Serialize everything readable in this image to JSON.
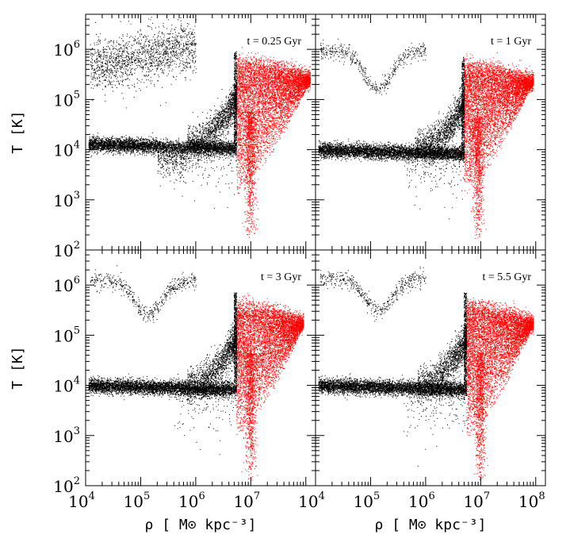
{
  "chart_data": {
    "type": "scatter",
    "layout": "2x2 panels, shared axes",
    "xlabel": "ρ [ M⊙ kpc⁻³]",
    "ylabel": "T [K]",
    "xscale": "log",
    "yscale": "log",
    "xlim": [
      10000,
      150000000
    ],
    "ylim": [
      100,
      5000000
    ],
    "x_tick_values": [
      10000,
      100000,
      1000000,
      10000000,
      100000000
    ],
    "y_tick_values": [
      100,
      1000,
      10000,
      100000,
      1000000
    ],
    "series_colors": [
      "#000000",
      "#ff0000"
    ],
    "panels": [
      {
        "label": "t = 0.25 Gyr",
        "black_density_cut": 5500000,
        "features": {
          "hot_halo": {
            "x": [
              12000,
              1000000
            ],
            "y": [
              200000,
              1300000
            ]
          },
          "warm_plateau_T": 13000,
          "cool_trough": {
            "x": [
              200000,
              700000
            ],
            "T_min": 3000
          },
          "red_plume": {
            "x": [
              5500000,
              120000000
            ],
            "T_peak": 600000,
            "T_min": 150
          }
        }
      },
      {
        "label": "t = 1 Gyr",
        "black_density_cut": 5000000,
        "features": {
          "hot_halo": {
            "x": [
              12000,
              1000000
            ],
            "y": [
              150000,
              1200000
            ]
          },
          "warm_plateau_T": 10000,
          "cool_trough": null,
          "red_plume": {
            "x": [
              5000000,
              90000000
            ],
            "T_peak": 500000,
            "T_min": 150
          }
        }
      },
      {
        "label": "t = 3 Gyr",
        "black_density_cut": 5500000,
        "features": {
          "hot_halo": {
            "x": [
              12000,
              1000000
            ],
            "y": [
              250000,
              1600000
            ]
          },
          "warm_plateau_T": 10000,
          "cool_trough": null,
          "red_plume": {
            "x": [
              5500000,
              90000000
            ],
            "T_peak": 400000,
            "T_min": 100
          }
        }
      },
      {
        "label": "t = 5.5 Gyr",
        "black_density_cut": 5500000,
        "features": {
          "hot_halo": {
            "x": [
              12000,
              1000000
            ],
            "y": [
              300000,
              1700000
            ]
          },
          "warm_plateau_T": 10000,
          "cool_trough": null,
          "red_plume": {
            "x": [
              5500000,
              90000000
            ],
            "T_peak": 400000,
            "T_min": 100
          }
        }
      }
    ]
  }
}
